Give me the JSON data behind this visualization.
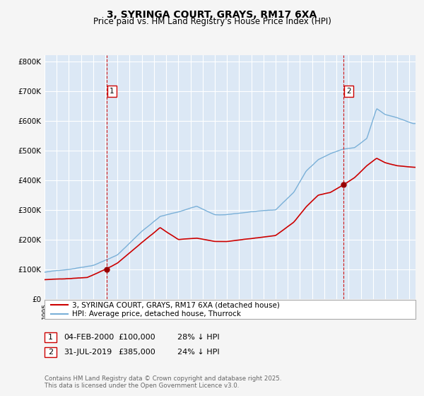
{
  "title": "3, SYRINGA COURT, GRAYS, RM17 6XA",
  "subtitle": "Price paid vs. HM Land Registry's House Price Index (HPI)",
  "bg_color": "#f5f5f5",
  "plot_bg_color": "#dce8f5",
  "grid_color": "#ffffff",
  "hpi_color": "#7ab0d8",
  "price_color": "#cc0000",
  "vline_color": "#cc0000",
  "marker_color": "#990000",
  "ylim": [
    0,
    820000
  ],
  "ytick_labels": [
    "£0",
    "£100K",
    "£200K",
    "£300K",
    "£400K",
    "£500K",
    "£600K",
    "£700K",
    "£800K"
  ],
  "ytick_values": [
    0,
    100000,
    200000,
    300000,
    400000,
    500000,
    600000,
    700000,
    800000
  ],
  "sale1_date_num": 2000.09,
  "sale1_price": 100000,
  "sale1_label": "1",
  "sale1_date_str": "04-FEB-2000",
  "sale1_pct": "28% ↓ HPI",
  "sale2_date_num": 2019.58,
  "sale2_price": 385000,
  "sale2_label": "2",
  "sale2_date_str": "31-JUL-2019",
  "sale2_pct": "24% ↓ HPI",
  "legend1_label": "3, SYRINGA COURT, GRAYS, RM17 6XA (detached house)",
  "legend2_label": "HPI: Average price, detached house, Thurrock",
  "footnote": "Contains HM Land Registry data © Crown copyright and database right 2025.\nThis data is licensed under the Open Government Licence v3.0.",
  "xmin": 1995.0,
  "xmax": 2025.5
}
